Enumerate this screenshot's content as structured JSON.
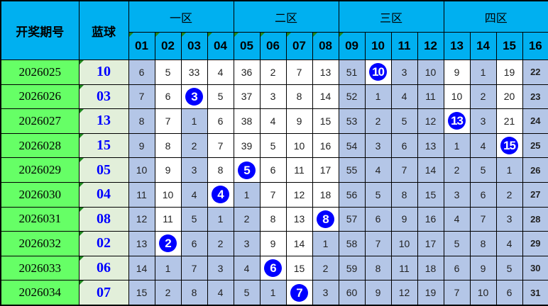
{
  "header": {
    "period_label": "开奖期号",
    "blue_label": "蓝球",
    "zones": [
      "一区",
      "二区",
      "三区",
      "四区"
    ],
    "numbers": [
      "01",
      "02",
      "03",
      "04",
      "05",
      "06",
      "07",
      "08",
      "09",
      "10",
      "11",
      "12",
      "13",
      "14",
      "15",
      "16"
    ]
  },
  "colors": {
    "header": "#00b0f0",
    "period": "#66ff66",
    "blue_col": "#e2efda",
    "shaded": "#b4c6e7",
    "ball": "#0000ff"
  },
  "rows": [
    {
      "period": "2026025",
      "blue": "10",
      "hit": 10,
      "cells": [
        "6",
        "5",
        "33",
        "4",
        "36",
        "2",
        "7",
        "13",
        "51",
        "10",
        "3",
        "10",
        "9",
        "1",
        "19",
        "22"
      ]
    },
    {
      "period": "2026026",
      "blue": "03",
      "hit": 3,
      "cells": [
        "7",
        "6",
        "3",
        "5",
        "37",
        "3",
        "8",
        "14",
        "52",
        "1",
        "4",
        "11",
        "10",
        "2",
        "20",
        "23"
      ]
    },
    {
      "period": "2026027",
      "blue": "13",
      "hit": 13,
      "cells": [
        "8",
        "7",
        "1",
        "6",
        "38",
        "4",
        "9",
        "15",
        "53",
        "2",
        "5",
        "12",
        "13",
        "3",
        "21",
        "24"
      ]
    },
    {
      "period": "2026028",
      "blue": "15",
      "hit": 15,
      "cells": [
        "9",
        "8",
        "2",
        "7",
        "39",
        "5",
        "10",
        "16",
        "54",
        "3",
        "6",
        "13",
        "1",
        "4",
        "15",
        "25"
      ]
    },
    {
      "period": "2026029",
      "blue": "05",
      "hit": 5,
      "cells": [
        "10",
        "9",
        "3",
        "8",
        "5",
        "6",
        "11",
        "17",
        "55",
        "4",
        "7",
        "14",
        "2",
        "5",
        "1",
        "26"
      ]
    },
    {
      "period": "2026030",
      "blue": "04",
      "hit": 4,
      "cells": [
        "11",
        "10",
        "4",
        "4",
        "1",
        "7",
        "12",
        "18",
        "56",
        "5",
        "8",
        "15",
        "3",
        "6",
        "2",
        "27"
      ]
    },
    {
      "period": "2026031",
      "blue": "08",
      "hit": 8,
      "cells": [
        "12",
        "11",
        "5",
        "1",
        "2",
        "8",
        "13",
        "8",
        "57",
        "6",
        "9",
        "16",
        "4",
        "7",
        "3",
        "28"
      ]
    },
    {
      "period": "2026032",
      "blue": "02",
      "hit": 2,
      "cells": [
        "13",
        "2",
        "6",
        "2",
        "3",
        "9",
        "14",
        "1",
        "58",
        "7",
        "10",
        "17",
        "5",
        "8",
        "4",
        "29"
      ]
    },
    {
      "period": "2026033",
      "blue": "06",
      "hit": 6,
      "cells": [
        "14",
        "1",
        "7",
        "3",
        "4",
        "6",
        "15",
        "2",
        "59",
        "8",
        "11",
        "18",
        "6",
        "9",
        "5",
        "30"
      ]
    },
    {
      "period": "2026034",
      "blue": "07",
      "hit": 7,
      "cells": [
        "15",
        "2",
        "8",
        "4",
        "5",
        "1",
        "7",
        "3",
        "60",
        "9",
        "12",
        "19",
        "7",
        "10",
        "6",
        "31"
      ]
    }
  ]
}
